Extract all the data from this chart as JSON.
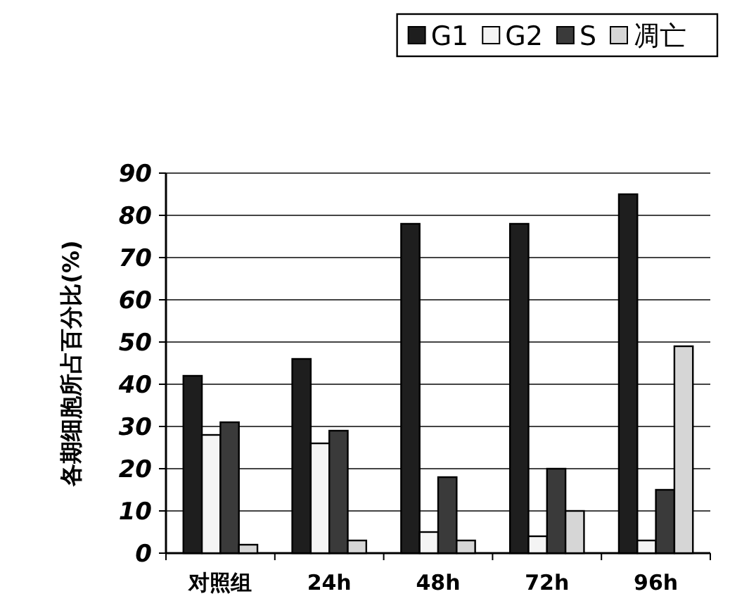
{
  "chart_data": {
    "type": "bar",
    "ylabel": "各期细胞所占百分比(%)",
    "categories": [
      "对照组",
      "24h",
      "48h",
      "72h",
      "96h"
    ],
    "series": [
      {
        "name": "G1",
        "color": "#1e1e1e",
        "values": [
          42,
          46,
          78,
          78,
          85
        ]
      },
      {
        "name": "G2",
        "color": "#f4f4f4",
        "values": [
          28,
          26,
          5,
          4,
          3
        ]
      },
      {
        "name": "S",
        "color": "#3a3a3a",
        "values": [
          31,
          29,
          18,
          20,
          15
        ]
      },
      {
        "name": "凋亡",
        "color": "#d6d6d6",
        "values": [
          2,
          3,
          3,
          10,
          49
        ]
      }
    ],
    "ylim": [
      0,
      90
    ],
    "yticks": [
      0,
      10,
      20,
      30,
      40,
      50,
      60,
      70,
      80,
      90
    ],
    "grid": "y",
    "legend": "top right"
  }
}
